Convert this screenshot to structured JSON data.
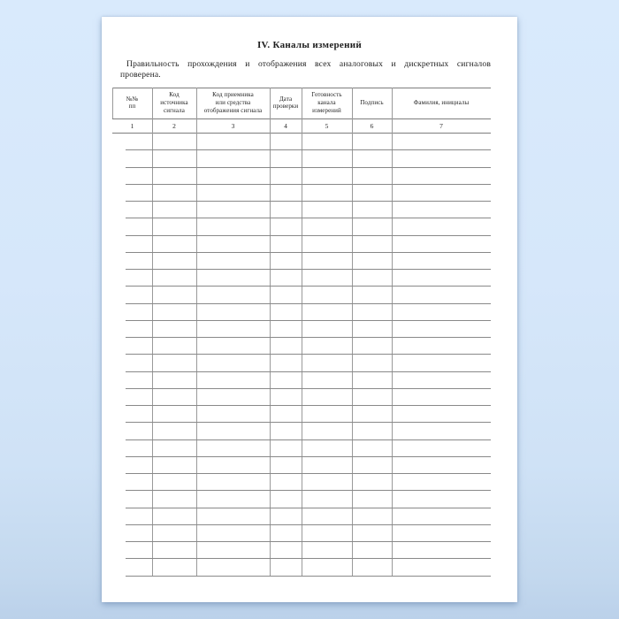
{
  "page": {
    "title": "IV. Каналы измерений",
    "paragraph": {
      "line1": "Правильность прохождения и отображения всех аналоговых и дискретных сигналов",
      "line2": "проверена."
    }
  },
  "table": {
    "columns": [
      {
        "label": "№№\nпп",
        "number": "1"
      },
      {
        "label": "Код\nисточника\nсигнала",
        "number": "2"
      },
      {
        "label": "Код приемника\nили средства\nотображения сигнала",
        "number": "3"
      },
      {
        "label": "Дата\nпроверки",
        "number": "4"
      },
      {
        "label": "Готовность\nканала\nизмерений",
        "number": "5"
      },
      {
        "label": "Подпись",
        "number": "6"
      },
      {
        "label": "Фамилия, инициалы",
        "number": "7"
      }
    ],
    "empty_row_count": 26
  },
  "colors": {
    "page_background": "#ffffff",
    "desktop_background": "#d6e8fa",
    "grid_line": "#898989",
    "text": "#1f1f1f"
  }
}
